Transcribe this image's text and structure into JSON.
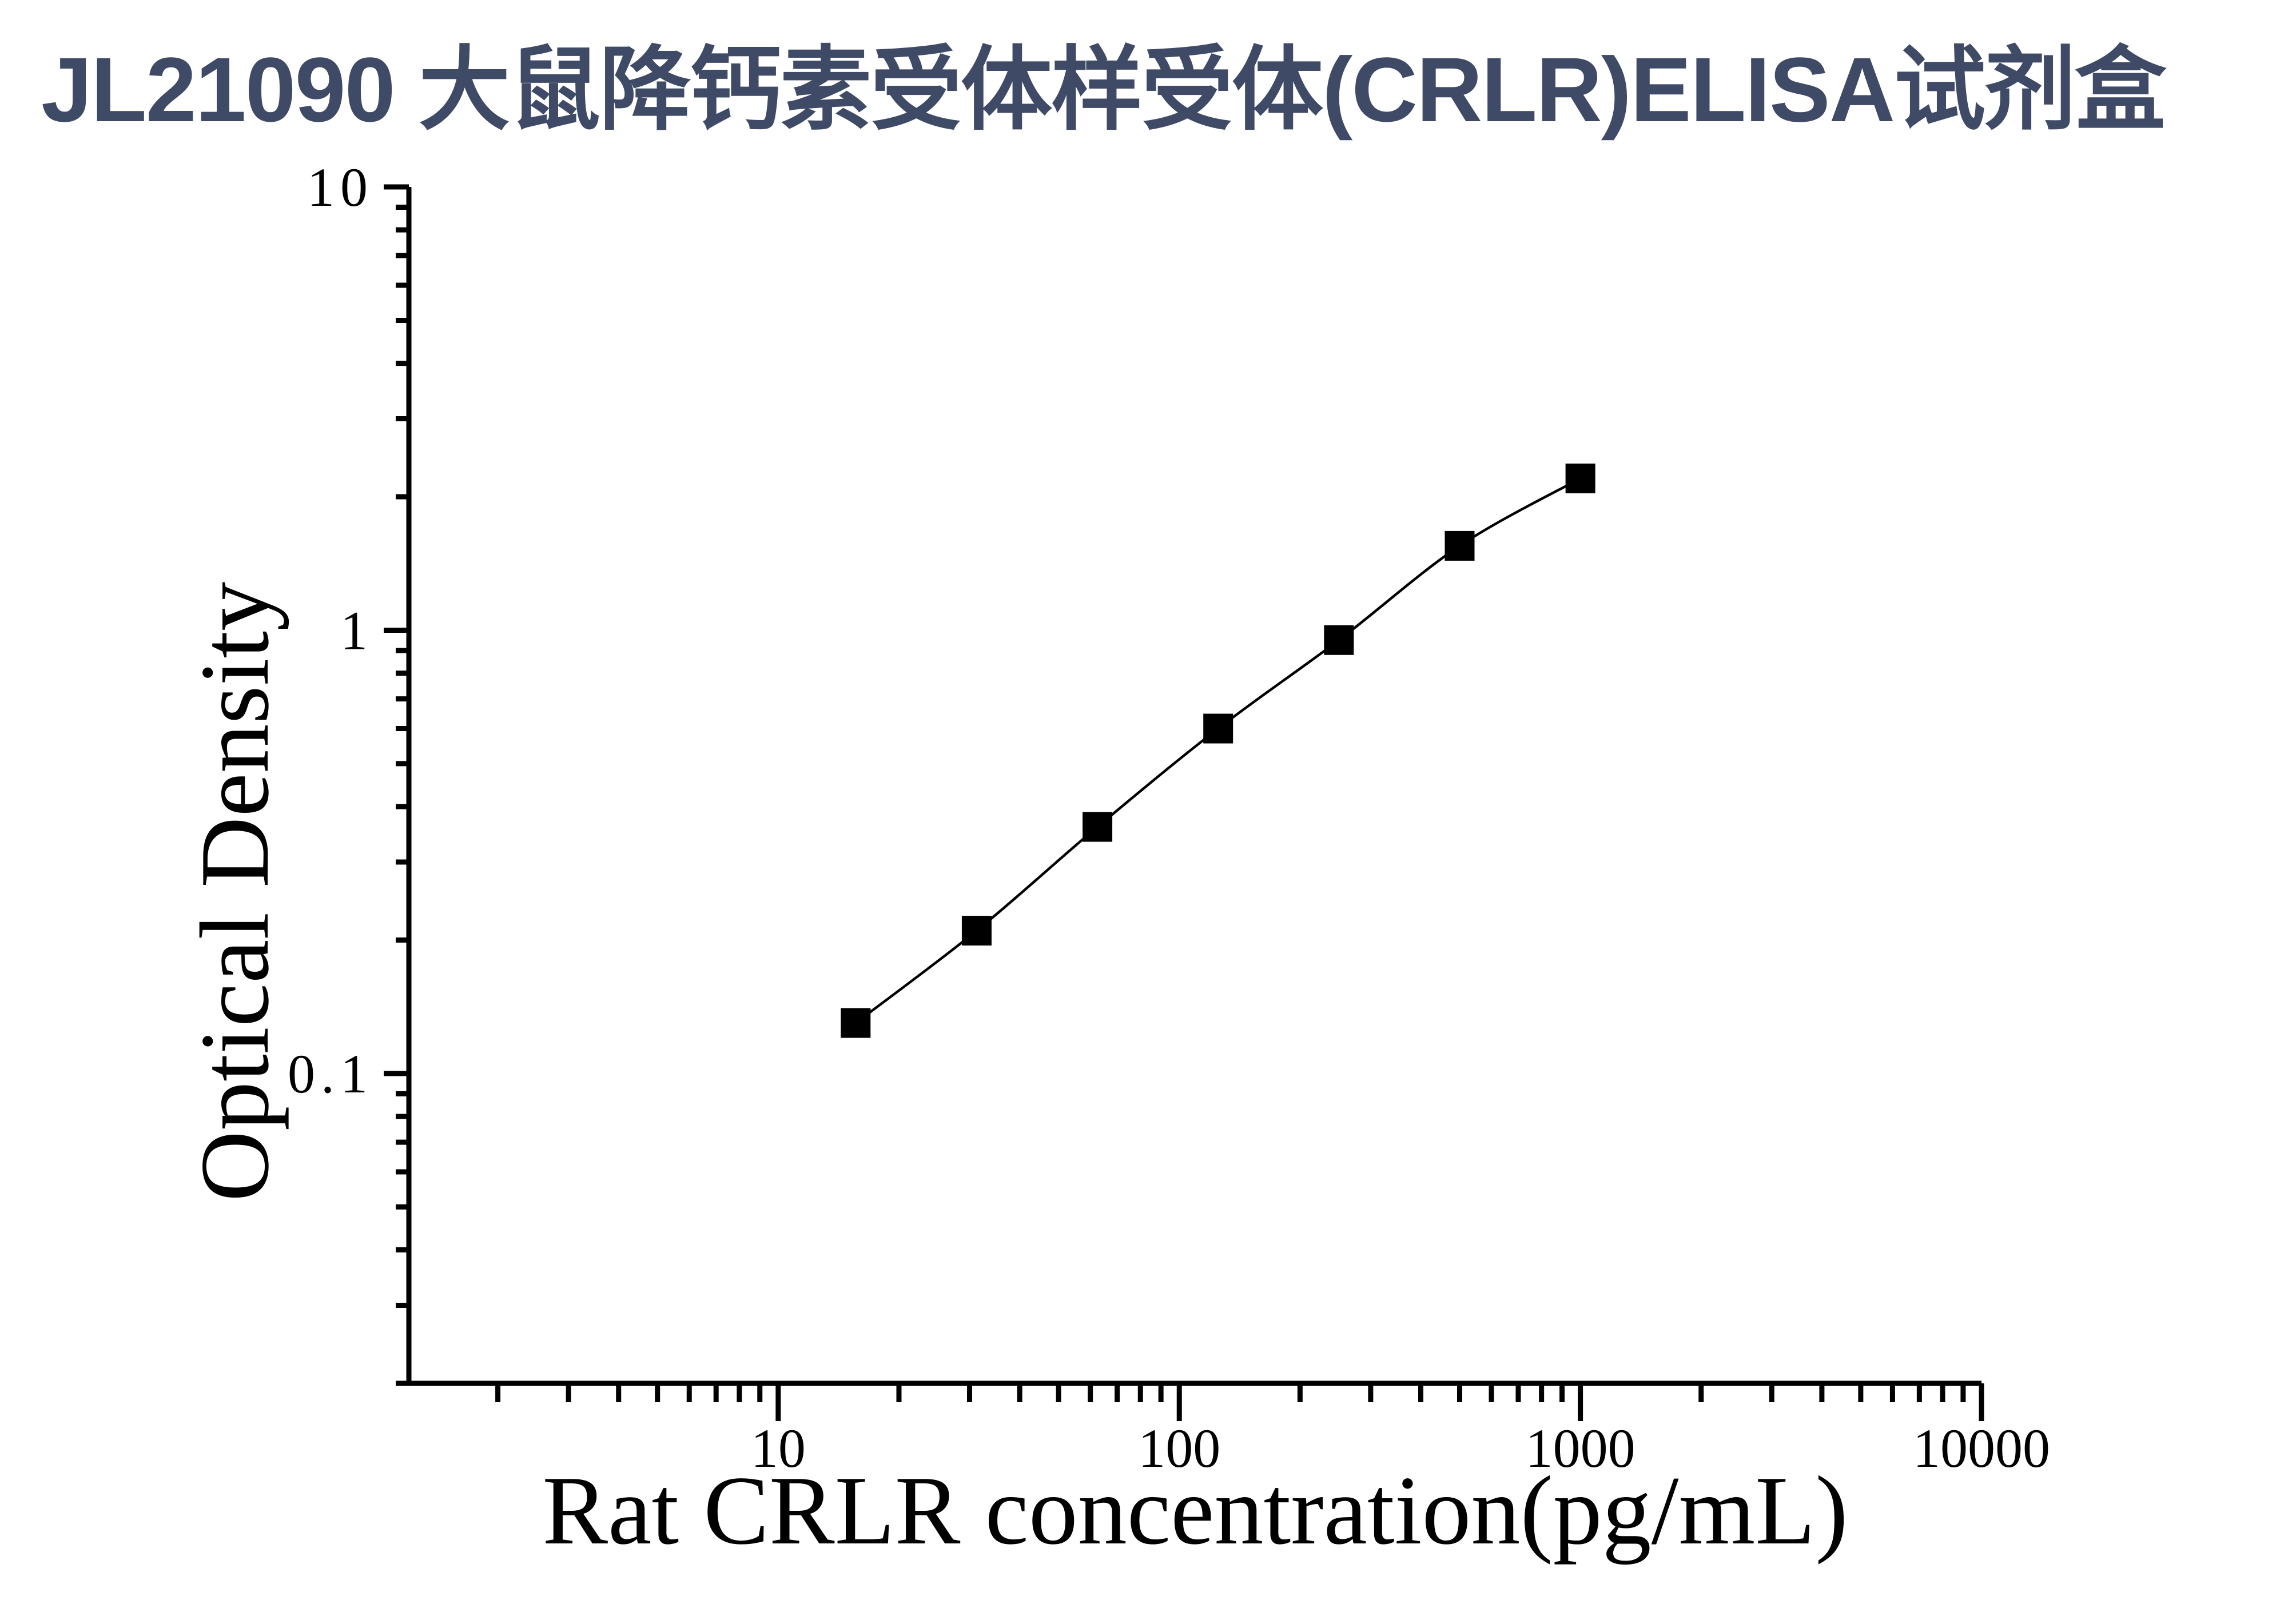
{
  "chart_data": {
    "type": "line",
    "title": "JL21090 大鼠降钙素受体样受体(CRLR)ELISA试剂盒",
    "title_color": "#3E4A66",
    "xlabel": "Rat CRLR concentration(pg/mL)",
    "ylabel": "Optical Density",
    "x_scale": "log",
    "y_scale": "log",
    "xlim": [
      1.2,
      10000
    ],
    "ylim": [
      0.02,
      10
    ],
    "x_ticks": [
      10,
      100,
      1000,
      10000
    ],
    "x_tick_labels": [
      "10",
      "100",
      "1000",
      "10000"
    ],
    "y_ticks": [
      10,
      1,
      0.1
    ],
    "y_tick_labels": [
      "10",
      "1",
      "0.1"
    ],
    "grid": false,
    "legend": "none",
    "series": [
      {
        "marker": "filled-square",
        "color": "#000000",
        "x": [
          15.6,
          31.25,
          62.5,
          125,
          250,
          500,
          1000
        ],
        "y": [
          0.13,
          0.21,
          0.36,
          0.6,
          0.95,
          1.55,
          2.2
        ]
      }
    ]
  }
}
